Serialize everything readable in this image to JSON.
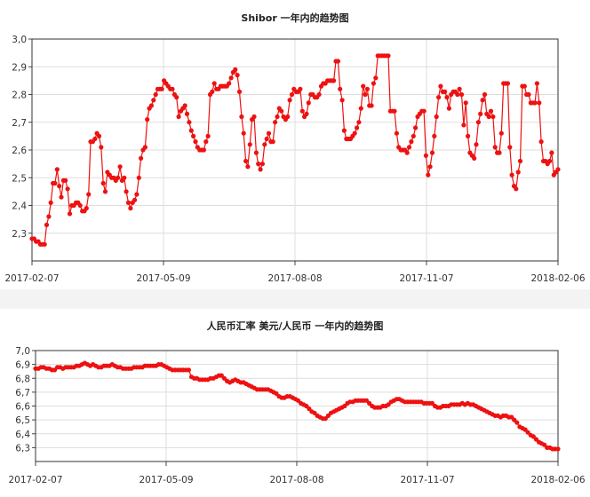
{
  "chart_data": [
    {
      "type": "line",
      "title": "Shibor  一年内的趋势图",
      "xlabel": "",
      "ylabel": "",
      "x_start": "2017-02-07",
      "x_end": "2018-02-06",
      "x_tick_labels": [
        "2017-02-07",
        "2017-05-09",
        "2017-08-08",
        "2017-11-07",
        "2018-02-06"
      ],
      "y_tick_labels": [
        "2,3",
        "2,4",
        "2,5",
        "2,6",
        "2,7",
        "2,8",
        "2,9",
        "3,0"
      ],
      "ylim": [
        2.2,
        3.0
      ],
      "grid": true,
      "marker": "circle",
      "series_color": "#ee1111",
      "series": [
        {
          "name": "",
          "values": [
            2.28,
            2.28,
            2.27,
            2.27,
            2.26,
            2.26,
            2.26,
            2.33,
            2.36,
            2.41,
            2.48,
            2.48,
            2.53,
            2.47,
            2.43,
            2.49,
            2.49,
            2.46,
            2.37,
            2.4,
            2.4,
            2.41,
            2.41,
            2.4,
            2.38,
            2.38,
            2.39,
            2.44,
            2.63,
            2.63,
            2.64,
            2.66,
            2.65,
            2.61,
            2.48,
            2.45,
            2.52,
            2.51,
            2.5,
            2.5,
            2.49,
            2.5,
            2.54,
            2.49,
            2.5,
            2.45,
            2.41,
            2.39,
            2.41,
            2.42,
            2.44,
            2.5,
            2.57,
            2.6,
            2.61,
            2.71,
            2.75,
            2.76,
            2.78,
            2.8,
            2.82,
            2.82,
            2.82,
            2.85,
            2.84,
            2.83,
            2.82,
            2.82,
            2.8,
            2.79,
            2.72,
            2.74,
            2.75,
            2.76,
            2.73,
            2.7,
            2.67,
            2.65,
            2.63,
            2.61,
            2.6,
            2.6,
            2.6,
            2.63,
            2.65,
            2.8,
            2.81,
            2.84,
            2.82,
            2.82,
            2.83,
            2.83,
            2.83,
            2.83,
            2.84,
            2.86,
            2.88,
            2.89,
            2.87,
            2.81,
            2.72,
            2.66,
            2.56,
            2.54,
            2.62,
            2.71,
            2.72,
            2.59,
            2.55,
            2.53,
            2.55,
            2.62,
            2.64,
            2.66,
            2.63,
            2.63,
            2.7,
            2.72,
            2.75,
            2.74,
            2.72,
            2.71,
            2.72,
            2.78,
            2.8,
            2.82,
            2.81,
            2.81,
            2.82,
            2.74,
            2.72,
            2.73,
            2.77,
            2.8,
            2.8,
            2.79,
            2.79,
            2.8,
            2.83,
            2.84,
            2.84,
            2.85,
            2.85,
            2.85,
            2.85,
            2.92,
            2.92,
            2.82,
            2.78,
            2.67,
            2.64,
            2.64,
            2.64,
            2.65,
            2.66,
            2.68,
            2.7,
            2.75,
            2.83,
            2.8,
            2.82,
            2.76,
            2.76,
            2.84,
            2.86,
            2.94,
            2.94,
            2.94,
            2.94,
            2.94,
            2.94,
            2.74,
            2.74,
            2.74,
            2.66,
            2.61,
            2.6,
            2.6,
            2.6,
            2.59,
            2.61,
            2.63,
            2.65,
            2.68,
            2.72,
            2.73,
            2.74,
            2.74,
            2.58,
            2.51,
            2.54,
            2.59,
            2.65,
            2.72,
            2.79,
            2.83,
            2.81,
            2.81,
            2.79,
            2.75,
            2.8,
            2.81,
            2.81,
            2.8,
            2.82,
            2.8,
            2.69,
            2.77,
            2.65,
            2.59,
            2.58,
            2.57,
            2.62,
            2.7,
            2.73,
            2.78,
            2.8,
            2.73,
            2.72,
            2.74,
            2.72,
            2.61,
            2.59,
            2.59,
            2.66,
            2.84,
            2.84,
            2.84,
            2.61,
            2.51,
            2.47,
            2.46,
            2.52,
            2.56,
            2.83,
            2.83,
            2.8,
            2.8,
            2.77,
            2.77,
            2.77,
            2.84,
            2.77,
            2.63,
            2.56,
            2.56,
            2.55,
            2.56,
            2.59,
            2.51,
            2.52,
            2.53
          ]
        }
      ]
    },
    {
      "type": "line",
      "title": "人民币汇率 美元/人民币 一年内的趋势图",
      "xlabel": "",
      "ylabel": "",
      "x_start": "2017-02-07",
      "x_end": "2018-02-06",
      "x_tick_labels": [
        "2017-02-07",
        "2017-05-09",
        "2017-08-08",
        "2017-11-07",
        "2018-02-06"
      ],
      "y_tick_labels": [
        "6,3",
        "6,4",
        "6,5",
        "6,6",
        "6,7",
        "6,8",
        "6,9",
        "7,0"
      ],
      "ylim": [
        6.2,
        7.0
      ],
      "grid": true,
      "marker": "circle",
      "series_color": "#ee1111",
      "series": [
        {
          "name": "",
          "values": [
            6.87,
            6.87,
            6.88,
            6.88,
            6.87,
            6.87,
            6.86,
            6.86,
            6.88,
            6.88,
            6.87,
            6.88,
            6.88,
            6.88,
            6.88,
            6.89,
            6.89,
            6.9,
            6.91,
            6.9,
            6.89,
            6.9,
            6.89,
            6.88,
            6.88,
            6.89,
            6.89,
            6.89,
            6.9,
            6.89,
            6.88,
            6.88,
            6.87,
            6.87,
            6.87,
            6.87,
            6.88,
            6.88,
            6.88,
            6.88,
            6.89,
            6.89,
            6.89,
            6.89,
            6.89,
            6.9,
            6.9,
            6.89,
            6.88,
            6.87,
            6.86,
            6.86,
            6.86,
            6.86,
            6.86,
            6.86,
            6.86,
            6.81,
            6.8,
            6.8,
            6.79,
            6.79,
            6.79,
            6.79,
            6.8,
            6.8,
            6.81,
            6.82,
            6.82,
            6.8,
            6.78,
            6.77,
            6.78,
            6.79,
            6.78,
            6.77,
            6.77,
            6.76,
            6.75,
            6.74,
            6.73,
            6.72,
            6.72,
            6.72,
            6.72,
            6.72,
            6.71,
            6.7,
            6.69,
            6.67,
            6.66,
            6.66,
            6.67,
            6.67,
            6.66,
            6.65,
            6.64,
            6.62,
            6.61,
            6.6,
            6.58,
            6.56,
            6.55,
            6.53,
            6.52,
            6.51,
            6.51,
            6.53,
            6.55,
            6.56,
            6.57,
            6.58,
            6.59,
            6.6,
            6.62,
            6.63,
            6.63,
            6.64,
            6.64,
            6.64,
            6.64,
            6.64,
            6.62,
            6.6,
            6.59,
            6.59,
            6.59,
            6.6,
            6.6,
            6.61,
            6.63,
            6.64,
            6.65,
            6.65,
            6.64,
            6.63,
            6.63,
            6.63,
            6.63,
            6.63,
            6.63,
            6.63,
            6.62,
            6.62,
            6.62,
            6.62,
            6.6,
            6.59,
            6.59,
            6.6,
            6.6,
            6.6,
            6.61,
            6.61,
            6.61,
            6.61,
            6.62,
            6.61,
            6.62,
            6.61,
            6.61,
            6.6,
            6.59,
            6.58,
            6.57,
            6.56,
            6.55,
            6.54,
            6.53,
            6.53,
            6.52,
            6.53,
            6.53,
            6.52,
            6.52,
            6.5,
            6.48,
            6.45,
            6.44,
            6.43,
            6.41,
            6.39,
            6.38,
            6.36,
            6.34,
            6.33,
            6.32,
            6.3,
            6.3,
            6.29,
            6.29,
            6.29
          ]
        }
      ]
    }
  ]
}
